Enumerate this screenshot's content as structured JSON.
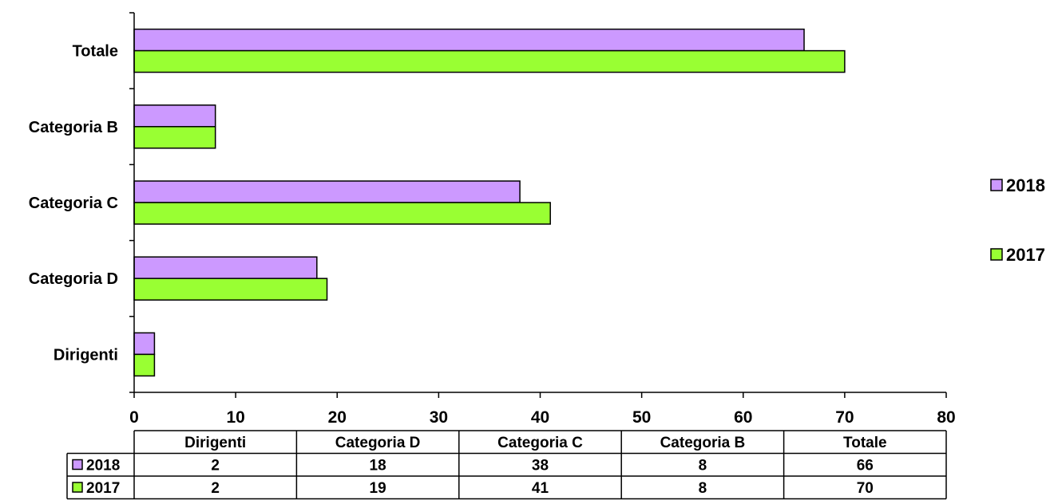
{
  "chart_data": {
    "type": "bar",
    "orientation": "horizontal",
    "categories": [
      "Dirigenti",
      "Categoria D",
      "Categoria C",
      "Categoria B",
      "Totale"
    ],
    "series": [
      {
        "name": "2018",
        "values": [
          2,
          18,
          38,
          8,
          66
        ],
        "color": "#cc99ff"
      },
      {
        "name": "2017",
        "values": [
          2,
          19,
          41,
          8,
          70
        ],
        "color": "#99ff33"
      }
    ],
    "xlim": [
      0,
      80
    ],
    "x_ticks": [
      0,
      10,
      20,
      30,
      40,
      50,
      60,
      70,
      80
    ],
    "grid": false,
    "legend_position": "right",
    "data_table": true
  }
}
